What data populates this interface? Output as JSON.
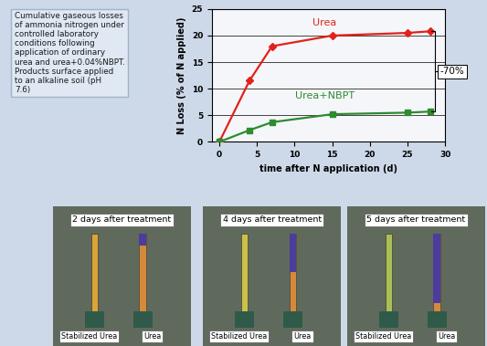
{
  "chart_data": {
    "type": "line",
    "x_label": "time after N application (d)",
    "y_label": "N Loss (% of N applied)",
    "x": [
      0,
      4,
      7,
      15,
      25,
      28
    ],
    "series": [
      {
        "name": "Urea",
        "color": "#e3211c",
        "marker": "diamond",
        "values": [
          0,
          11.5,
          18,
          20,
          20.5,
          20.8
        ]
      },
      {
        "name": "Urea+NBPT",
        "color": "#2e8b2e",
        "marker": "square",
        "values": [
          0,
          2.2,
          3.7,
          5.2,
          5.5,
          5.7
        ]
      }
    ],
    "xlim": [
      -1,
      30
    ],
    "xticks": [
      0,
      5,
      10,
      15,
      20,
      25,
      30
    ],
    "ylim": [
      0,
      25
    ],
    "yticks": [
      0,
      5,
      10,
      15,
      20,
      25
    ],
    "grid": true,
    "annotations": [
      "-70%"
    ]
  },
  "caption": "Cumulative gaseous losses of ammonia nitrogen under controlled laboratory conditions following application of ordinary urea and urea+0.04%NBPT. Products surface applied to an alkaline soil (pH 7.6)",
  "panels": [
    {
      "title": "2 days after treatment",
      "labels": [
        "Stabilized Urea",
        "Urea"
      ]
    },
    {
      "title": "4 days after treatment",
      "labels": [
        "Stabilized Urea",
        "Urea"
      ]
    },
    {
      "title": "5 days after treatment",
      "labels": [
        "Stabilized Urea",
        "Urea"
      ]
    }
  ]
}
